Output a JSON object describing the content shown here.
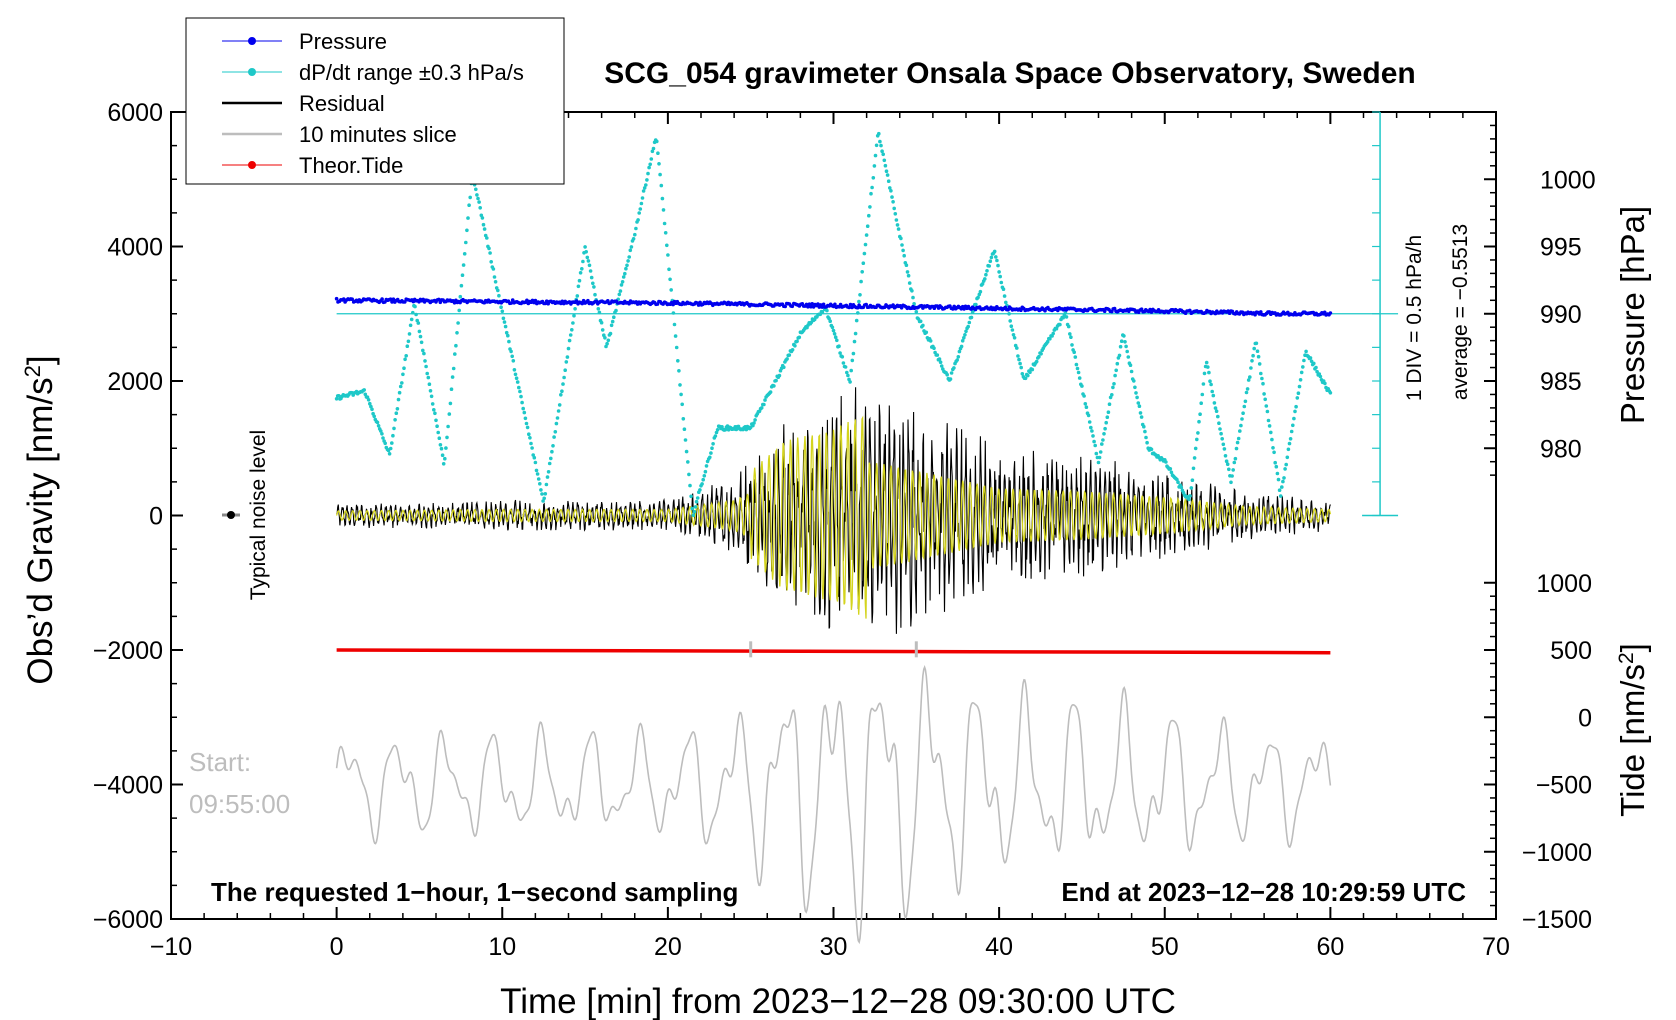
{
  "chart_data": {
    "type": "line",
    "title": "SCG_054 gravimeter Onsala Space Observatory, Sweden",
    "xlabel": "Time [min] from 2023−12−28 09:30:00 UTC",
    "ylabel_left": "Obs’d Gravity [nm/s",
    "ylabel_left_sup": "2",
    "ylabel_left_end": "]",
    "ylabel_right_pressure": "Pressure [hPa]",
    "ylabel_right_tide": "Tide [nm/s",
    "ylabel_right_tide_sup": "2",
    "ylabel_right_tide_end": "]",
    "xlim": [
      -10,
      70
    ],
    "ylim_left": [
      -6000,
      6000
    ],
    "x_ticks": [
      "−10",
      "0",
      "10",
      "20",
      "30",
      "40",
      "50",
      "60",
      "70"
    ],
    "x_tick_values": [
      -10,
      0,
      10,
      20,
      30,
      40,
      50,
      60,
      70
    ],
    "y_left_ticks": [
      "6000",
      "4000",
      "2000",
      "0",
      "−2000",
      "−4000",
      "−6000"
    ],
    "y_left_tick_values": [
      6000,
      4000,
      2000,
      0,
      -2000,
      -4000,
      -6000
    ],
    "y_pressure_ticks": [
      "1000",
      "995",
      "990",
      "985",
      "980"
    ],
    "y_pressure_tick_values": [
      1000,
      995,
      990,
      985,
      980
    ],
    "y_tide_ticks": [
      "1000",
      "500",
      "0",
      "−500",
      "−1000",
      "−1500"
    ],
    "y_tide_tick_values": [
      1000,
      500,
      0,
      -500,
      -1000,
      -1500
    ],
    "legend": [
      {
        "label": "Pressure",
        "color": "#0000ee",
        "marker": "dot"
      },
      {
        "label": "dP/dt range ±0.3 hPa/s",
        "color": "#1ec8c8",
        "marker": "dot"
      },
      {
        "label": "Residual",
        "color": "#000000",
        "marker": "line"
      },
      {
        "label": "10 minutes slice",
        "color": "#bdbdbd",
        "marker": "line"
      },
      {
        "label": "Theor.Tide",
        "color": "#ee0000",
        "marker": "dot"
      }
    ],
    "series": [
      {
        "name": "Pressure",
        "unit": "hPa",
        "x": [
          0,
          10,
          20,
          30,
          40,
          50,
          57,
          60
        ],
        "values": [
          991.0,
          990.9,
          990.8,
          990.6,
          990.4,
          990.2,
          990.0,
          990.0
        ]
      },
      {
        "name": "dP/dt",
        "unit": "nm/s2 display",
        "x": [
          0,
          1.7,
          3.2,
          4.7,
          6.5,
          8.2,
          10.2,
          12.5,
          15,
          16.3,
          18,
          19.3,
          21.5,
          23,
          25,
          28,
          29.5,
          31,
          32.7,
          35,
          37,
          39.7,
          41.5,
          44,
          46,
          47.5,
          49,
          50,
          51.5,
          52.5,
          54,
          55.5,
          57,
          58.5,
          60
        ],
        "values": [
          1750,
          1850,
          900,
          3150,
          750,
          5100,
          2800,
          200,
          4000,
          2500,
          4200,
          5650,
          0,
          1300,
          1300,
          2700,
          3100,
          2000,
          5700,
          3000,
          2000,
          3950,
          2000,
          3000,
          800,
          2700,
          1000,
          800,
          200,
          2300,
          500,
          2600,
          300,
          2450,
          1800
        ]
      },
      {
        "name": "Residual",
        "unit": "nm/s2",
        "envelope_x": [
          0,
          10,
          20,
          24,
          27,
          30,
          32,
          34,
          40,
          45,
          50,
          55,
          60
        ],
        "envelope_amp": [
          150,
          200,
          200,
          500,
          1300,
          1500,
          1800,
          1600,
          900,
          800,
          600,
          300,
          200
        ]
      },
      {
        "name": "10 minutes slice",
        "unit": "nm/s2",
        "offset": -4000,
        "x_range": [
          0,
          60
        ]
      },
      {
        "name": "Theor.Tide",
        "unit": "nm/s2",
        "x": [
          0,
          60
        ],
        "values": [
          500,
          480
        ]
      }
    ],
    "annotations": {
      "typical_noise": "Typical noise level",
      "start_label": "Start:",
      "start_time": "09:55:00",
      "bottom_left": "The requested 1−hour, 1−second sampling",
      "bottom_right": "End at 2023−12−28 10:29:59 UTC",
      "div_label": "1 DIV = 0.5 hPa/h",
      "average_label": "average = −0.5513"
    }
  }
}
